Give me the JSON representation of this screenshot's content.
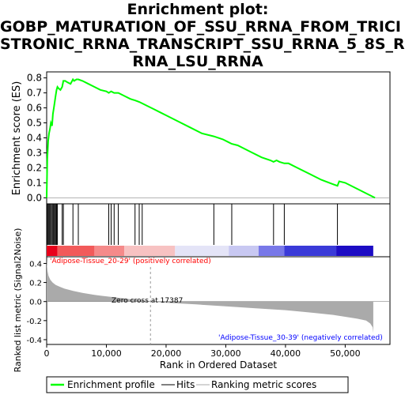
{
  "title_lines": [
    "Enrichment plot:",
    "GOBP_MATURATION_OF_SSU_RRNA_FROM_TRICI",
    "STRONIC_RRNA_TRANSCRIPT_SSU_RRNA_5_8S_R",
    "RNA_LSU_RRNA"
  ],
  "colors": {
    "enrichment_line": "#00ff00",
    "hit_line": "#000000",
    "metric_fill": "#aaaaaa",
    "positive_label": "#ff0000",
    "negative_label": "#0000ff"
  },
  "chart_data": [
    {
      "type": "line",
      "panel": "enrichment",
      "ylabel": "Enrichment score (ES)",
      "xlim": [
        0,
        57500
      ],
      "ylim": [
        -0.04,
        0.84
      ],
      "yticks": [
        0.0,
        0.1,
        0.2,
        0.3,
        0.4,
        0.5,
        0.6,
        0.7,
        0.8
      ],
      "ytick_labels": [
        "0.0",
        "0.1",
        "0.2",
        "0.3",
        "0.4",
        "0.5",
        "0.6",
        "0.7",
        "0.8"
      ],
      "grid": false,
      "series": [
        {
          "name": "Enrichment profile",
          "x": [
            0,
            100,
            250,
            400,
            550,
            700,
            900,
            1050,
            1200,
            1350,
            1500,
            1650,
            1800,
            2000,
            2300,
            2600,
            2800,
            3100,
            3500,
            4000,
            4400,
            4600,
            5000,
            5300,
            6000,
            7000,
            8000,
            9000,
            10000,
            10400,
            10800,
            11300,
            12000,
            13000,
            14000,
            14800,
            15500,
            16000,
            17000,
            18000,
            19000,
            20000,
            22000,
            24000,
            26000,
            28000,
            29500,
            30500,
            31000,
            32000,
            34000,
            36000,
            37500,
            38000,
            38500,
            39000,
            39800,
            40500,
            42000,
            44000,
            46000,
            48000,
            48700,
            49000,
            50000,
            52000,
            54000,
            55000
          ],
          "y": [
            0.0,
            0.26,
            0.38,
            0.43,
            0.46,
            0.5,
            0.48,
            0.56,
            0.6,
            0.64,
            0.68,
            0.72,
            0.74,
            0.73,
            0.72,
            0.74,
            0.78,
            0.78,
            0.77,
            0.76,
            0.79,
            0.78,
            0.79,
            0.79,
            0.78,
            0.76,
            0.74,
            0.72,
            0.71,
            0.7,
            0.71,
            0.7,
            0.7,
            0.68,
            0.66,
            0.65,
            0.64,
            0.63,
            0.61,
            0.59,
            0.57,
            0.55,
            0.51,
            0.47,
            0.43,
            0.41,
            0.39,
            0.37,
            0.36,
            0.35,
            0.31,
            0.27,
            0.25,
            0.24,
            0.25,
            0.24,
            0.23,
            0.23,
            0.2,
            0.16,
            0.12,
            0.09,
            0.08,
            0.11,
            0.1,
            0.06,
            0.02,
            0.0
          ]
        }
      ]
    },
    {
      "type": "bar",
      "panel": "hits",
      "series": [
        {
          "name": "Hits",
          "x": [
            100,
            250,
            400,
            550,
            700,
            900,
            1050,
            1200,
            1350,
            1500,
            1650,
            1800,
            2600,
            2800,
            4400,
            5300,
            10400,
            10800,
            11300,
            12000,
            14800,
            15500,
            16000,
            28000,
            31000,
            38000,
            39800,
            48700
          ]
        }
      ]
    },
    {
      "type": "area",
      "panel": "ranked_metric",
      "xlabel": "Rank in Ordered Dataset",
      "ylabel": "Ranked list metric (Signal2Noise)",
      "xlim": [
        0,
        57500
      ],
      "ylim": [
        -0.45,
        0.47
      ],
      "xticks": [
        0,
        10000,
        20000,
        30000,
        40000,
        50000
      ],
      "xtick_labels": [
        "0",
        "10,000",
        "20,000",
        "30,000",
        "40,000",
        "50,000"
      ],
      "yticks": [
        -0.4,
        -0.2,
        0.0,
        0.2,
        0.4
      ],
      "ytick_labels": [
        "-0.4",
        "-0.2",
        "0.0",
        "0.2",
        "0.4"
      ],
      "series": [
        {
          "name": "Ranking metric scores",
          "x": [
            0,
            50,
            150,
            300,
            600,
            1000,
            1500,
            2200,
            3000,
            4500,
            6000,
            8000,
            10000,
            12000,
            14000,
            16000,
            17387,
            20000,
            25000,
            30000,
            35000,
            40000,
            45000,
            48000,
            50000,
            52000,
            53500,
            54200,
            54600,
            54700
          ],
          "y": [
            0.46,
            0.38,
            0.32,
            0.27,
            0.23,
            0.2,
            0.175,
            0.155,
            0.135,
            0.11,
            0.09,
            0.07,
            0.055,
            0.04,
            0.025,
            0.012,
            0.0,
            -0.012,
            -0.03,
            -0.05,
            -0.07,
            -0.09,
            -0.12,
            -0.14,
            -0.16,
            -0.18,
            -0.2,
            -0.23,
            -0.27,
            -0.33
          ]
        }
      ],
      "annotations": {
        "zero_cross": "Zero cross at 17387",
        "positive": "'Adipose-Tissue_20-29' (positively correlated)",
        "negative": "'Adipose-Tissue_30-39' (negatively correlated)"
      }
    }
  ],
  "legend": {
    "position": "bottom",
    "items": [
      {
        "label": "Enrichment profile",
        "color": "#00ff00"
      },
      {
        "label": "Hits",
        "color": "#000000"
      },
      {
        "label": "Ranking metric scores",
        "color": "#aaaaaa"
      }
    ]
  }
}
